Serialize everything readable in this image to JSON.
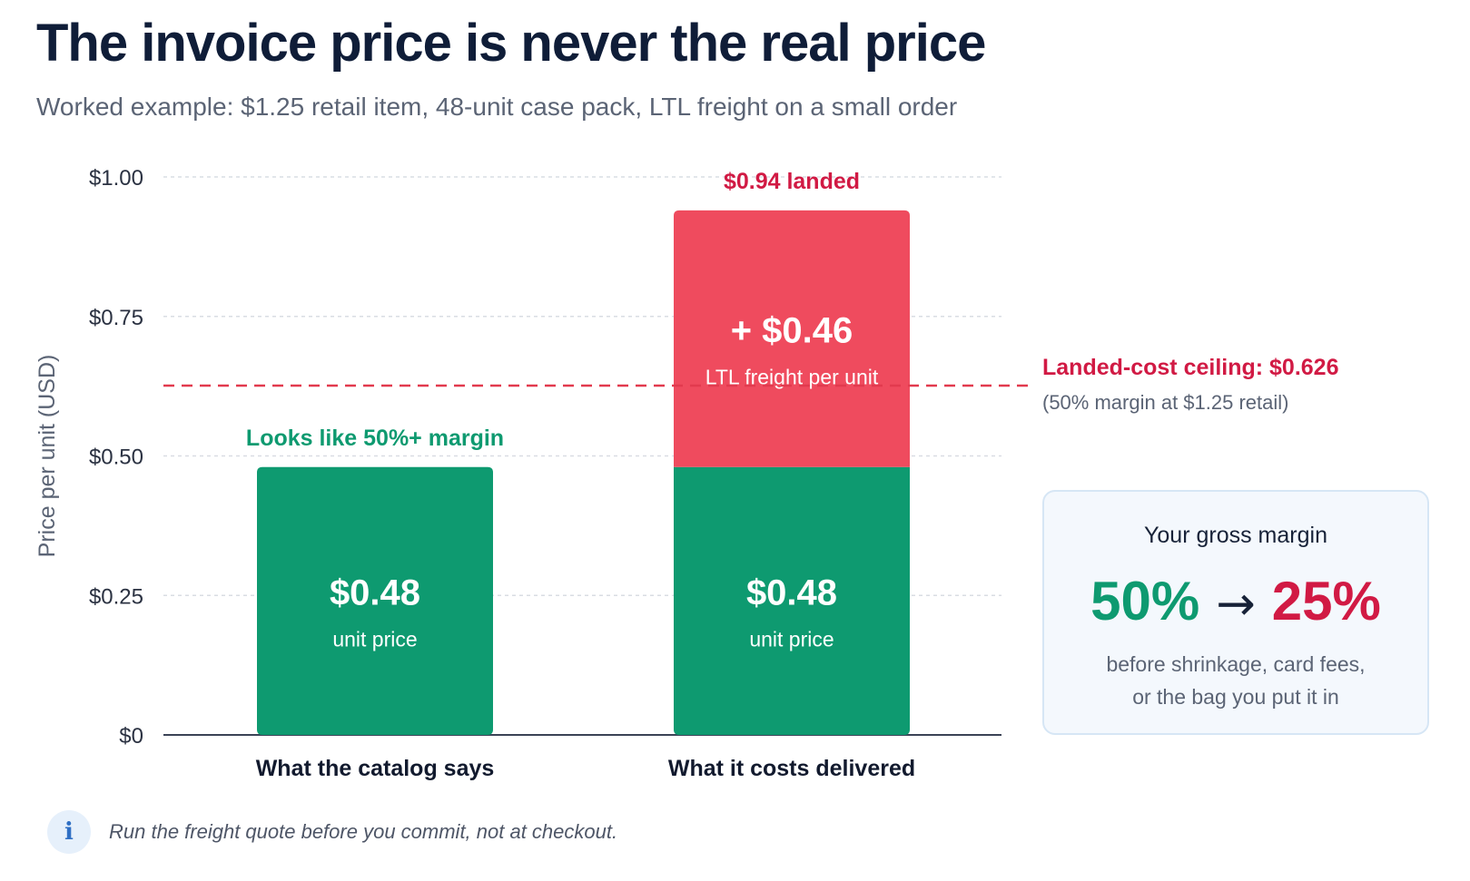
{
  "header": {
    "title": "The invoice price is never the real price",
    "subtitle": "Worked example: $1.25 retail item, 48-unit case pack, LTL freight on a small order"
  },
  "chart_data": {
    "type": "bar",
    "stacked": true,
    "ylabel": "Price per unit (USD)",
    "ylim": [
      0,
      1.0
    ],
    "yticks": [
      0,
      0.25,
      0.5,
      0.75,
      1.0
    ],
    "ytick_labels": [
      "$0",
      "$0.25",
      "$0.50",
      "$0.75",
      "$1.00"
    ],
    "grid": true,
    "categories": [
      "What the catalog says",
      "What it costs delivered"
    ],
    "series": [
      {
        "values": [
          0.48,
          0.48
        ],
        "color": "#0e9a70",
        "value_labels": [
          "$0.48",
          "$0.48"
        ],
        "sub_labels": [
          "unit price",
          "unit price"
        ]
      },
      {
        "values": [
          0,
          0.46
        ],
        "color": "#ef4b5e",
        "value_labels": [
          "",
          "+ $0.46"
        ],
        "sub_labels": [
          "",
          "LTL freight per unit"
        ]
      }
    ],
    "top_labels": [
      {
        "text": "Looks like 50%+ margin",
        "color": "#0e9a70"
      },
      {
        "text": "$0.94 landed",
        "color": "#d11a44"
      }
    ],
    "reference_line": {
      "value": 0.626,
      "color": "#e23a4e",
      "label": "Landed-cost ceiling: $0.626",
      "sublabel": "(50% margin at $1.25 retail)"
    }
  },
  "margin_card": {
    "heading": "Your gross margin",
    "from": "50%",
    "arrow": "→",
    "to": "25%",
    "note_line1": "before shrinkage, card fees,",
    "note_line2": "or the bag you put it in"
  },
  "footer": {
    "icon": "info-icon",
    "text": "Run the freight quote before you commit, not at checkout."
  }
}
